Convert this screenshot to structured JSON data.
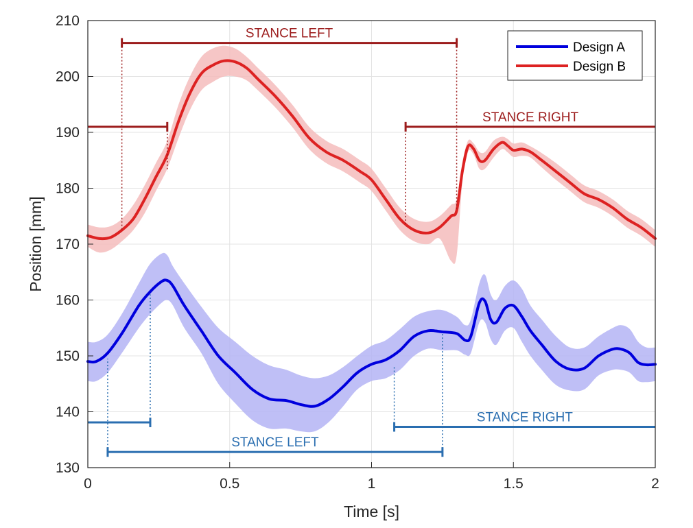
{
  "chart_data": {
    "type": "line",
    "xlabel": "Time [s]",
    "ylabel": "Position [mm]",
    "xlim": [
      0,
      2
    ],
    "ylim": [
      130,
      210
    ],
    "xticks": [
      0,
      0.5,
      1,
      1.5,
      2
    ],
    "xtick_labels": [
      "0",
      "0.5",
      "1",
      "1.5",
      "2"
    ],
    "yticks": [
      130,
      140,
      150,
      160,
      170,
      180,
      190,
      200,
      210
    ],
    "ytick_labels": [
      "130",
      "140",
      "150",
      "160",
      "170",
      "180",
      "190",
      "200",
      "210"
    ],
    "grid": true,
    "legend_position": "top-right",
    "series": [
      {
        "name": "Design A",
        "color": "#0000dd",
        "band_color": "#b4b4f5",
        "x": [
          0,
          0.03,
          0.07,
          0.12,
          0.18,
          0.22,
          0.26,
          0.28,
          0.3,
          0.34,
          0.4,
          0.46,
          0.52,
          0.58,
          0.64,
          0.7,
          0.75,
          0.8,
          0.85,
          0.9,
          0.95,
          1.0,
          1.05,
          1.1,
          1.15,
          1.2,
          1.25,
          1.3,
          1.33,
          1.35,
          1.38,
          1.4,
          1.42,
          1.44,
          1.47,
          1.5,
          1.53,
          1.56,
          1.6,
          1.65,
          1.7,
          1.75,
          1.8,
          1.85,
          1.88,
          1.91,
          1.94,
          1.97,
          2.0
        ],
        "y": [
          149,
          149,
          150.5,
          154,
          159,
          161.5,
          163.3,
          163.5,
          162.5,
          159,
          154.5,
          150,
          147,
          144,
          142.3,
          142,
          141.3,
          141,
          142.3,
          144.5,
          147,
          148.5,
          149.3,
          151,
          153.5,
          154.5,
          154.3,
          154,
          152.8,
          153.5,
          159.5,
          159.8,
          156.5,
          156,
          158.5,
          159,
          157,
          154.5,
          152,
          149,
          147.6,
          147.8,
          150,
          151.2,
          151.2,
          150.5,
          148.8,
          148.4,
          148.5
        ],
        "upper": [
          152.5,
          152.5,
          153.8,
          157.5,
          163,
          166.5,
          168.3,
          168,
          166,
          163,
          158.8,
          155,
          152.5,
          150,
          148.3,
          147.5,
          146.5,
          146,
          146.5,
          148,
          150,
          151.8,
          152.8,
          154.8,
          157,
          158,
          158.2,
          157,
          155.5,
          156.5,
          163,
          164.5,
          161,
          160,
          162.5,
          163.5,
          162,
          159,
          156.5,
          153.5,
          151.5,
          151.5,
          153.5,
          155,
          155.5,
          154.8,
          152.5,
          151.5,
          151.5
        ],
        "lower": [
          145.5,
          145.5,
          147,
          150.5,
          155,
          157.5,
          159.5,
          160,
          159,
          155,
          150.5,
          145,
          141.5,
          138.5,
          137,
          137,
          136.5,
          136.5,
          138.2,
          141,
          144,
          145.5,
          146,
          147.5,
          150,
          151.3,
          151,
          151,
          150.2,
          150.5,
          156,
          156,
          153,
          152,
          154.5,
          155,
          152.5,
          150,
          147.5,
          144.8,
          143.8,
          144,
          146.5,
          147.5,
          147.5,
          147,
          145.5,
          145.3,
          145.5
        ]
      },
      {
        "name": "Design B",
        "color": "#dd2222",
        "band_color": "#f5bcbc",
        "x": [
          0,
          0.04,
          0.08,
          0.12,
          0.16,
          0.2,
          0.24,
          0.28,
          0.32,
          0.36,
          0.4,
          0.44,
          0.48,
          0.52,
          0.56,
          0.6,
          0.66,
          0.72,
          0.78,
          0.84,
          0.9,
          0.96,
          1.0,
          1.05,
          1.1,
          1.15,
          1.2,
          1.24,
          1.28,
          1.3,
          1.32,
          1.34,
          1.36,
          1.38,
          1.4,
          1.43,
          1.46,
          1.48,
          1.5,
          1.53,
          1.56,
          1.6,
          1.65,
          1.7,
          1.75,
          1.8,
          1.85,
          1.9,
          1.95,
          2.0
        ],
        "y": [
          171.5,
          171,
          171.2,
          172.5,
          174.5,
          178,
          182,
          186,
          192,
          197,
          200.5,
          202,
          202.8,
          202.6,
          201.5,
          199.5,
          196.5,
          193,
          189,
          186.5,
          185,
          183,
          181.5,
          178,
          174.5,
          172.5,
          172,
          173,
          175,
          176,
          183,
          187.5,
          187,
          185,
          185,
          187,
          188.2,
          187.6,
          186.8,
          187,
          186.5,
          185,
          183,
          181,
          179,
          178,
          176.5,
          174.5,
          173,
          171
        ],
        "upper": [
          173.5,
          173,
          173.2,
          174.5,
          177,
          180.5,
          184.5,
          188.5,
          195,
          200,
          203.5,
          205,
          205.5,
          205,
          203.5,
          201.5,
          198.5,
          195,
          191,
          188.5,
          187,
          185,
          183.5,
          180,
          176.5,
          174.5,
          174,
          175,
          177,
          178,
          184.5,
          188.5,
          188,
          186.5,
          186.5,
          188.5,
          189.2,
          188.8,
          188,
          188.2,
          187.5,
          186.3,
          184.5,
          182.5,
          180.5,
          179.5,
          178,
          176,
          174.5,
          172.5
        ],
        "lower": [
          169.5,
          168.5,
          169,
          170.5,
          172.5,
          175.5,
          179.5,
          183.5,
          189,
          194,
          197.5,
          199,
          200,
          200,
          199.3,
          197.5,
          194.5,
          191,
          187,
          184.5,
          183,
          181,
          179.5,
          176,
          172.5,
          170.5,
          170,
          171,
          167,
          168,
          181,
          186.5,
          186,
          183.5,
          183.5,
          185.5,
          187,
          186.4,
          185.6,
          185.8,
          185.5,
          183.7,
          181.5,
          179.5,
          177.5,
          176.5,
          175,
          173,
          171.5,
          169.5
        ]
      }
    ],
    "annotations": [
      {
        "text": "STANCE LEFT",
        "color": "#9c1c1c",
        "bar_y": 206,
        "x_start": 0.12,
        "x_end": 1.3,
        "drop_to": [
          172.5,
          176
        ]
      },
      {
        "text": "STANCE RIGHT",
        "color": "#9c1c1c",
        "bar_y": 191,
        "x_start": 1.12,
        "x_end": 2.0,
        "drop_to": [
          173.5,
          null
        ]
      },
      {
        "text": "",
        "color": "#9c1c1c",
        "bar_y": 191,
        "x_start": 0,
        "x_end": 0.28,
        "drop_to": [
          null,
          183
        ]
      },
      {
        "text": "STANCE LEFT",
        "color": "#2a6eb0",
        "bar_y": 132.8,
        "x_start": 0.07,
        "x_end": 1.25,
        "drop_to": [
          149.5,
          154.3
        ]
      },
      {
        "text": "STANCE RIGHT",
        "color": "#2a6eb0",
        "bar_y": 137.3,
        "x_start": 1.08,
        "x_end": 2.0,
        "drop_to": [
          148.3,
          null
        ]
      },
      {
        "text": "",
        "color": "#2a6eb0",
        "bar_y": 138.1,
        "x_start": 0,
        "x_end": 0.22,
        "drop_to": [
          null,
          161
        ]
      }
    ]
  }
}
